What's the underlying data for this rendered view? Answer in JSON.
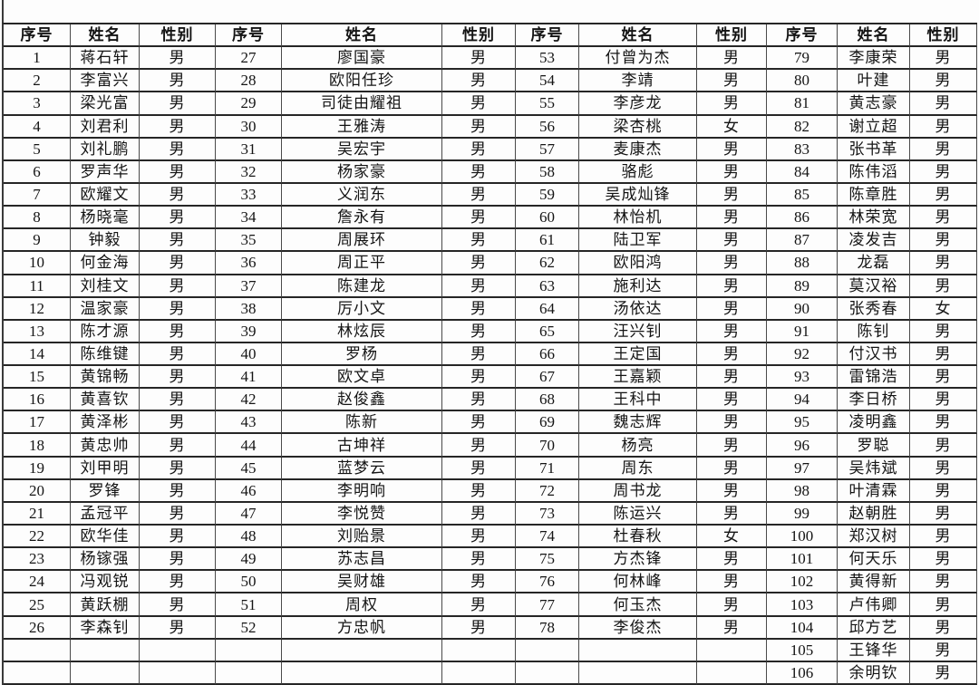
{
  "table": {
    "columns": [
      "序号",
      "姓名",
      "性别"
    ],
    "group_count": 4,
    "group_sizes": [
      26,
      26,
      26,
      28
    ],
    "body_rows": 28,
    "fields": [
      "no",
      "name",
      "sex"
    ],
    "people": [
      [
        "1",
        "蒋石轩",
        "男"
      ],
      [
        "2",
        "李富兴",
        "男"
      ],
      [
        "3",
        "梁光富",
        "男"
      ],
      [
        "4",
        "刘君利",
        "男"
      ],
      [
        "5",
        "刘礼鹏",
        "男"
      ],
      [
        "6",
        "罗声华",
        "男"
      ],
      [
        "7",
        "欧耀文",
        "男"
      ],
      [
        "8",
        "杨晓毫",
        "男"
      ],
      [
        "9",
        "钟毅",
        "男"
      ],
      [
        "10",
        "何金海",
        "男"
      ],
      [
        "11",
        "刘桂文",
        "男"
      ],
      [
        "12",
        "温家豪",
        "男"
      ],
      [
        "13",
        "陈才源",
        "男"
      ],
      [
        "14",
        "陈维键",
        "男"
      ],
      [
        "15",
        "黄锦畅",
        "男"
      ],
      [
        "16",
        "黄喜钦",
        "男"
      ],
      [
        "17",
        "黄泽彬",
        "男"
      ],
      [
        "18",
        "黄忠帅",
        "男"
      ],
      [
        "19",
        "刘甲明",
        "男"
      ],
      [
        "20",
        "罗锋",
        "男"
      ],
      [
        "21",
        "孟冠平",
        "男"
      ],
      [
        "22",
        "欧华佳",
        "男"
      ],
      [
        "23",
        "杨镓强",
        "男"
      ],
      [
        "24",
        "冯观锐",
        "男"
      ],
      [
        "25",
        "黄跃棚",
        "男"
      ],
      [
        "26",
        "李森钊",
        "男"
      ],
      [
        "27",
        "廖国豪",
        "男"
      ],
      [
        "28",
        "欧阳任珍",
        "男"
      ],
      [
        "29",
        "司徒由耀祖",
        "男"
      ],
      [
        "30",
        "王雅涛",
        "男"
      ],
      [
        "31",
        "吴宏宇",
        "男"
      ],
      [
        "32",
        "杨家豪",
        "男"
      ],
      [
        "33",
        "义润东",
        "男"
      ],
      [
        "34",
        "詹永有",
        "男"
      ],
      [
        "35",
        "周展环",
        "男"
      ],
      [
        "36",
        "周正平",
        "男"
      ],
      [
        "37",
        "陈建龙",
        "男"
      ],
      [
        "38",
        "厉小文",
        "男"
      ],
      [
        "39",
        "林炫辰",
        "男"
      ],
      [
        "40",
        "罗杨",
        "男"
      ],
      [
        "41",
        "欧文卓",
        "男"
      ],
      [
        "42",
        "赵俊鑫",
        "男"
      ],
      [
        "43",
        "陈新",
        "男"
      ],
      [
        "44",
        "古坤祥",
        "男"
      ],
      [
        "45",
        "蓝梦云",
        "男"
      ],
      [
        "46",
        "李明响",
        "男"
      ],
      [
        "47",
        "李悦赞",
        "男"
      ],
      [
        "48",
        "刘贻景",
        "男"
      ],
      [
        "49",
        "苏志昌",
        "男"
      ],
      [
        "50",
        "吴财雄",
        "男"
      ],
      [
        "51",
        "周权",
        "男"
      ],
      [
        "52",
        "方忠帆",
        "男"
      ],
      [
        "53",
        "付曾为杰",
        "男"
      ],
      [
        "54",
        "李靖",
        "男"
      ],
      [
        "55",
        "李彦龙",
        "男"
      ],
      [
        "56",
        "梁杏桃",
        "女"
      ],
      [
        "57",
        "麦康杰",
        "男"
      ],
      [
        "58",
        "骆彪",
        "男"
      ],
      [
        "59",
        "吴成灿锋",
        "男"
      ],
      [
        "60",
        "林怡机",
        "男"
      ],
      [
        "61",
        "陆卫军",
        "男"
      ],
      [
        "62",
        "欧阳鸿",
        "男"
      ],
      [
        "63",
        "施利达",
        "男"
      ],
      [
        "64",
        "汤依达",
        "男"
      ],
      [
        "65",
        "汪兴钊",
        "男"
      ],
      [
        "66",
        "王定国",
        "男"
      ],
      [
        "67",
        "王嘉颖",
        "男"
      ],
      [
        "68",
        "王科中",
        "男"
      ],
      [
        "69",
        "魏志辉",
        "男"
      ],
      [
        "70",
        "杨亮",
        "男"
      ],
      [
        "71",
        "周东",
        "男"
      ],
      [
        "72",
        "周书龙",
        "男"
      ],
      [
        "73",
        "陈运兴",
        "男"
      ],
      [
        "74",
        "杜春秋",
        "女"
      ],
      [
        "75",
        "方杰锋",
        "男"
      ],
      [
        "76",
        "何林峰",
        "男"
      ],
      [
        "77",
        "何玉杰",
        "男"
      ],
      [
        "78",
        "李俊杰",
        "男"
      ],
      [
        "79",
        "李康荣",
        "男"
      ],
      [
        "80",
        "叶建",
        "男"
      ],
      [
        "81",
        "黄志豪",
        "男"
      ],
      [
        "82",
        "谢立超",
        "男"
      ],
      [
        "83",
        "张书革",
        "男"
      ],
      [
        "84",
        "陈伟滔",
        "男"
      ],
      [
        "85",
        "陈章胜",
        "男"
      ],
      [
        "86",
        "林荣宽",
        "男"
      ],
      [
        "87",
        "凌发吉",
        "男"
      ],
      [
        "88",
        "龙磊",
        "男"
      ],
      [
        "89",
        "莫汉裕",
        "男"
      ],
      [
        "90",
        "张秀春",
        "女"
      ],
      [
        "91",
        "陈钊",
        "男"
      ],
      [
        "92",
        "付汉书",
        "男"
      ],
      [
        "93",
        "雷锦浩",
        "男"
      ],
      [
        "94",
        "李日桥",
        "男"
      ],
      [
        "95",
        "凌明鑫",
        "男"
      ],
      [
        "96",
        "罗聪",
        "男"
      ],
      [
        "97",
        "吴炜斌",
        "男"
      ],
      [
        "98",
        "叶清霖",
        "男"
      ],
      [
        "99",
        "赵朝胜",
        "男"
      ],
      [
        "100",
        "郑汉树",
        "男"
      ],
      [
        "101",
        "何天乐",
        "男"
      ],
      [
        "102",
        "黄得新",
        "男"
      ],
      [
        "103",
        "卢伟卿",
        "男"
      ],
      [
        "104",
        "邱方艺",
        "男"
      ],
      [
        "105",
        "王锋华",
        "男"
      ],
      [
        "106",
        "余明钦",
        "男"
      ]
    ]
  }
}
